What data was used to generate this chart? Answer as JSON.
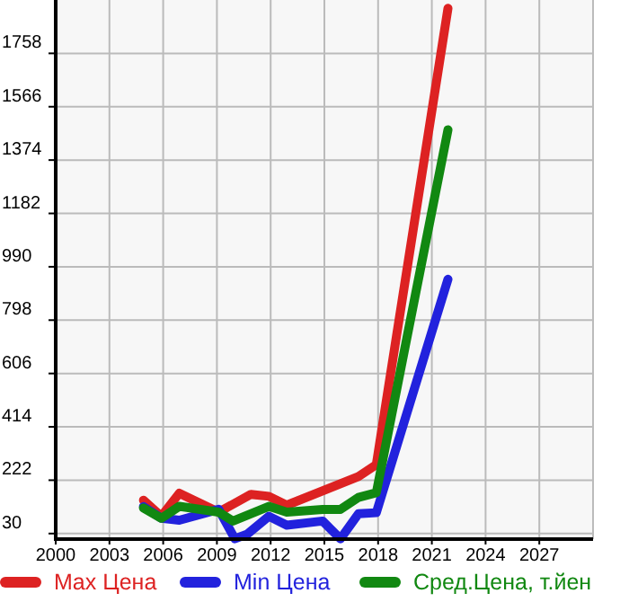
{
  "chart_data": {
    "type": "line",
    "xlim": [
      2000,
      2030
    ],
    "xticks": [
      2000,
      2003,
      2006,
      2009,
      2012,
      2015,
      2018,
      2021,
      2024,
      2027
    ],
    "ylim": [
      10,
      1950
    ],
    "yticks": [
      30,
      222,
      414,
      606,
      798,
      990,
      1182,
      1374,
      1566,
      1758
    ],
    "grid": true,
    "legend": "bottom",
    "marker": "none",
    "line_style": "solid",
    "series": [
      {
        "name": "Max Цена",
        "color": "#dd2222",
        "x": [
          2004.9,
          2005.9,
          2006.9,
          2009.1,
          2010.9,
          2011.9,
          2012.9,
          2016.9,
          2017.9,
          2021.9
        ],
        "values": [
          150,
          92,
          175,
          107,
          171,
          164,
          132,
          235,
          278,
          1920
        ]
      },
      {
        "name": "Min Цена",
        "color": "#2222dd",
        "x": [
          2004.9,
          2005.9,
          2006.9,
          2009.1,
          2010,
          2010.7,
          2011.9,
          2012.9,
          2014.9,
          2015.9,
          2016.9,
          2017.9,
          2021.9
        ],
        "values": [
          127,
          85,
          78,
          117,
          11,
          28,
          92,
          60,
          75,
          11,
          101,
          105,
          945
        ]
      },
      {
        "name": "Сред.Цена, т.йен",
        "color": "#118811",
        "x": [
          2004.9,
          2005.9,
          2006.9,
          2009.1,
          2009.9,
          2011.9,
          2012.9,
          2014.9,
          2015.9,
          2016.9,
          2017.9,
          2021.9
        ],
        "values": [
          122,
          85,
          128,
          107,
          75,
          128,
          107,
          117,
          117,
          160,
          177,
          1483
        ]
      }
    ]
  }
}
